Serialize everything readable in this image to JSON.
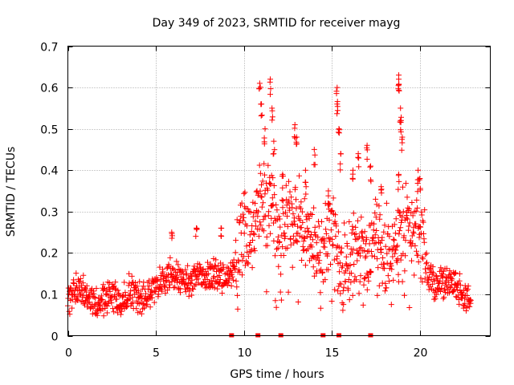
{
  "chart_data": {
    "type": "scatter",
    "title": "Day 349 of 2023, SRMTID for receiver mayg",
    "xlabel": "GPS time / hours",
    "ylabel": "SRMTID / TECUs",
    "xlim": [
      0,
      24
    ],
    "ylim": [
      0,
      0.7
    ],
    "xticks": [
      "0",
      "5",
      "10",
      "15",
      "20"
    ],
    "yticks": [
      "0",
      "0.1",
      "0.2",
      "0.3",
      "0.4",
      "0.5",
      "0.6",
      "0.7"
    ],
    "grid": true,
    "marker": "+",
    "color": "#ff0000",
    "trend": [
      {
        "x": 0.0,
        "y": 0.09
      },
      {
        "x": 0.5,
        "y": 0.11
      },
      {
        "x": 1.0,
        "y": 0.1
      },
      {
        "x": 1.5,
        "y": 0.07
      },
      {
        "x": 2.0,
        "y": 0.09
      },
      {
        "x": 2.5,
        "y": 0.1
      },
      {
        "x": 3.0,
        "y": 0.08
      },
      {
        "x": 3.5,
        "y": 0.11
      },
      {
        "x": 4.0,
        "y": 0.09
      },
      {
        "x": 4.5,
        "y": 0.09
      },
      {
        "x": 5.0,
        "y": 0.12
      },
      {
        "x": 5.5,
        "y": 0.14
      },
      {
        "x": 6.0,
        "y": 0.15
      },
      {
        "x": 6.5,
        "y": 0.14
      },
      {
        "x": 7.0,
        "y": 0.13
      },
      {
        "x": 7.5,
        "y": 0.15
      },
      {
        "x": 8.0,
        "y": 0.14
      },
      {
        "x": 8.5,
        "y": 0.15
      },
      {
        "x": 9.0,
        "y": 0.13
      },
      {
        "x": 9.5,
        "y": 0.18
      },
      {
        "x": 10.0,
        "y": 0.25
      },
      {
        "x": 10.5,
        "y": 0.24
      },
      {
        "x": 11.0,
        "y": 0.3
      },
      {
        "x": 11.5,
        "y": 0.32
      },
      {
        "x": 12.0,
        "y": 0.24
      },
      {
        "x": 12.5,
        "y": 0.28
      },
      {
        "x": 13.0,
        "y": 0.27
      },
      {
        "x": 13.5,
        "y": 0.25
      },
      {
        "x": 14.0,
        "y": 0.23
      },
      {
        "x": 14.5,
        "y": 0.2
      },
      {
        "x": 15.0,
        "y": 0.26
      },
      {
        "x": 15.5,
        "y": 0.15
      },
      {
        "x": 16.0,
        "y": 0.17
      },
      {
        "x": 16.5,
        "y": 0.24
      },
      {
        "x": 17.0,
        "y": 0.2
      },
      {
        "x": 17.5,
        "y": 0.24
      },
      {
        "x": 18.0,
        "y": 0.19
      },
      {
        "x": 18.5,
        "y": 0.21
      },
      {
        "x": 19.0,
        "y": 0.23
      },
      {
        "x": 19.5,
        "y": 0.26
      },
      {
        "x": 20.0,
        "y": 0.25
      },
      {
        "x": 20.5,
        "y": 0.14
      },
      {
        "x": 21.0,
        "y": 0.12
      },
      {
        "x": 21.5,
        "y": 0.13
      },
      {
        "x": 22.0,
        "y": 0.12
      },
      {
        "x": 22.5,
        "y": 0.1
      },
      {
        "x": 22.9,
        "y": 0.08
      }
    ],
    "spread": 0.03,
    "peaks": [
      {
        "x": 10.9,
        "y": 0.61
      },
      {
        "x": 11.5,
        "y": 0.62
      },
      {
        "x": 11.0,
        "y": 0.56
      },
      {
        "x": 11.6,
        "y": 0.55
      },
      {
        "x": 11.2,
        "y": 0.5
      },
      {
        "x": 11.7,
        "y": 0.47
      },
      {
        "x": 12.9,
        "y": 0.51
      },
      {
        "x": 13.0,
        "y": 0.48
      },
      {
        "x": 13.5,
        "y": 0.4
      },
      {
        "x": 14.0,
        "y": 0.45
      },
      {
        "x": 15.3,
        "y": 0.6
      },
      {
        "x": 15.3,
        "y": 0.56
      },
      {
        "x": 15.4,
        "y": 0.5
      },
      {
        "x": 15.5,
        "y": 0.44
      },
      {
        "x": 16.5,
        "y": 0.44
      },
      {
        "x": 17.0,
        "y": 0.46
      },
      {
        "x": 17.2,
        "y": 0.41
      },
      {
        "x": 18.8,
        "y": 0.63
      },
      {
        "x": 18.8,
        "y": 0.62
      },
      {
        "x": 18.9,
        "y": 0.55
      },
      {
        "x": 18.9,
        "y": 0.52
      },
      {
        "x": 19.0,
        "y": 0.48
      },
      {
        "x": 18.8,
        "y": 0.39
      },
      {
        "x": 19.9,
        "y": 0.4
      },
      {
        "x": 12.2,
        "y": 0.39
      },
      {
        "x": 14.8,
        "y": 0.35
      },
      {
        "x": 16.2,
        "y": 0.4
      },
      {
        "x": 5.9,
        "y": 0.25
      },
      {
        "x": 7.3,
        "y": 0.26
      },
      {
        "x": 8.7,
        "y": 0.26
      },
      {
        "x": 20.0,
        "y": 0.38
      },
      {
        "x": 17.8,
        "y": 0.36
      }
    ],
    "gap_markers": [
      9.3,
      10.8,
      12.1,
      14.5,
      15.4,
      17.2
    ]
  }
}
